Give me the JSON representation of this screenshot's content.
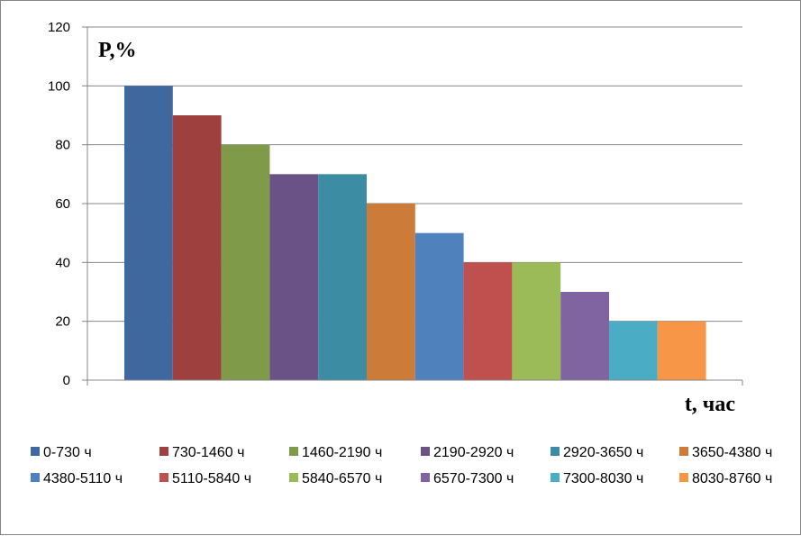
{
  "chart_data": {
    "type": "bar",
    "ylabel": "P,%",
    "xlabel": "t, час",
    "ylim": [
      0,
      120
    ],
    "yticks": [
      "0",
      "20",
      "40",
      "60",
      "80",
      "100",
      "120"
    ],
    "grid": true,
    "legend_position": "bottom",
    "series": [
      {
        "name": "0-730 ч",
        "value": 100,
        "color": "#3F689E"
      },
      {
        "name": "730-1460  ч",
        "value": 90,
        "color": "#9E413E"
      },
      {
        "name": "1460-2190  ч",
        "value": 80,
        "color": "#7F9A48"
      },
      {
        "name": "2190-2920  ч",
        "value": 70,
        "color": "#6A5287"
      },
      {
        "name": "2920-3650  ч",
        "value": 70,
        "color": "#3C8DA3"
      },
      {
        "name": "3650-4380  ч",
        "value": 60,
        "color": "#CC7B38"
      },
      {
        "name": "4380-5110  ч",
        "value": 50,
        "color": "#4F81BD"
      },
      {
        "name": "5110-5840  ч",
        "value": 40,
        "color": "#C0504D"
      },
      {
        "name": "5840-6570  ч",
        "value": 40,
        "color": "#9BBB59"
      },
      {
        "name": "6570-7300  ч",
        "value": 30,
        "color": "#8064A2"
      },
      {
        "name": "7300-8030 ч",
        "value": 20,
        "color": "#4BACC6"
      },
      {
        "name": "8030-8760 ч",
        "value": 20,
        "color": "#F79646"
      }
    ]
  }
}
